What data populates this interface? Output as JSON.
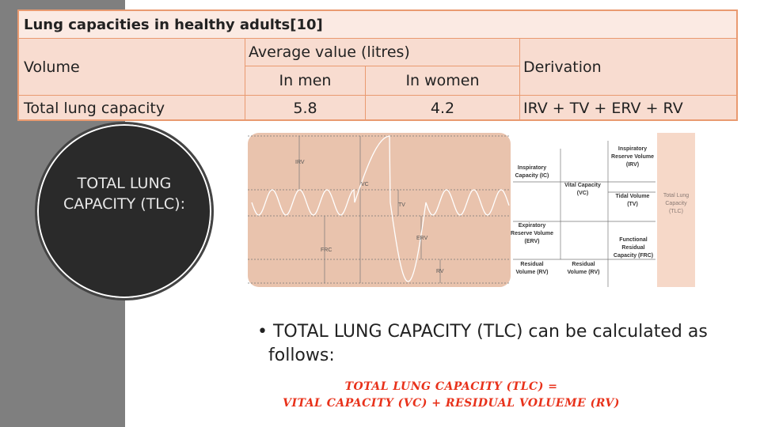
{
  "table": {
    "title": "Lung capacities in healthy adults[10]",
    "header": {
      "volume": "Volume",
      "average": "Average value (litres)",
      "men": "In men",
      "women": "In women",
      "derivation": "Derivation"
    },
    "rows": [
      [
        "Total lung capacity",
        "5.8",
        "4.2",
        "IRV + TV + ERV + RV"
      ]
    ]
  },
  "circle_text": "TOTAL LUNG CAPACITY (TLC):",
  "diagram": {
    "trace_labels": [
      "IRV",
      "VC",
      "TV",
      "ERV",
      "FRC",
      "RV"
    ],
    "capacity_labels": [
      "Inspiratory Capacity (IC)",
      "Vital Capacity (VC)",
      "Inspiratory Reserve Volume (IRV)",
      "Tidal Volume (TV)",
      "Total Lung Capacity (TLC)",
      "Expiratory Reserve Volume (ERV)",
      "Functional Residual Capacity (FRC)",
      "Residual Volume (RV)",
      "Residual Volume (RV)"
    ]
  },
  "bullet": "TOTAL LUNG CAPACITY (TLC) can be calculated as follows:",
  "formula": [
    "TOTAL LUNG CAPACITY (TLC) =",
    "VITAL CAPACITY (VC)  + RESIDUAL VOLUEME (RV)"
  ]
}
